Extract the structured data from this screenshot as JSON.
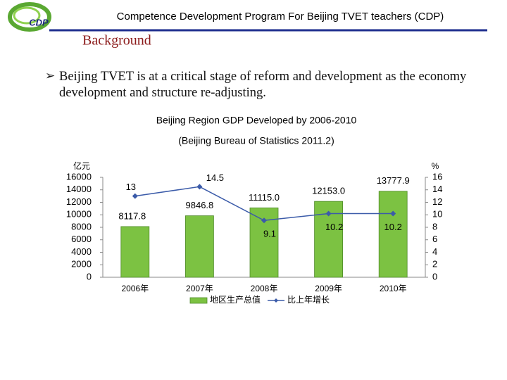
{
  "header": {
    "logo": "CDP",
    "title": "Competence Development Program For Beijing TVET teachers  (CDP)"
  },
  "section": "Background",
  "bullet": "Beijing TVET is at a critical stage of reform and development as the economy development and  structure re-adjusting.",
  "chart_data": {
    "type": "bar",
    "title": "Beijing Region GDP Developed by 2006-2010",
    "subtitle": "(Beijing Bureau of Statistics 2011.2)",
    "y_label": "亿元",
    "y2_label": "%",
    "categories": [
      "2006年",
      "2007年",
      "2008年",
      "2009年",
      "2010年"
    ],
    "series": [
      {
        "name": "地区生产总值",
        "color": "#7cc242",
        "values": [
          8117.8,
          9846.8,
          11115.0,
          12153.0,
          13777.9
        ],
        "value_labels": [
          "8117.8",
          "9846.8",
          "11115.0",
          "12153.0",
          "13777.9"
        ]
      },
      {
        "name": "比上年增长",
        "color": "#3b5ba9",
        "axis": "y2",
        "type": "line",
        "values": [
          13,
          14.5,
          9.1,
          10.2,
          10.2
        ]
      }
    ],
    "ylim": [
      0,
      16000
    ],
    "yticks": [
      0,
      2000,
      4000,
      6000,
      8000,
      10000,
      12000,
      14000,
      16000
    ],
    "y2lim": [
      0,
      16
    ],
    "y2ticks": [
      0,
      2,
      4,
      6,
      8,
      10,
      12,
      14,
      16
    ],
    "grid": false
  }
}
